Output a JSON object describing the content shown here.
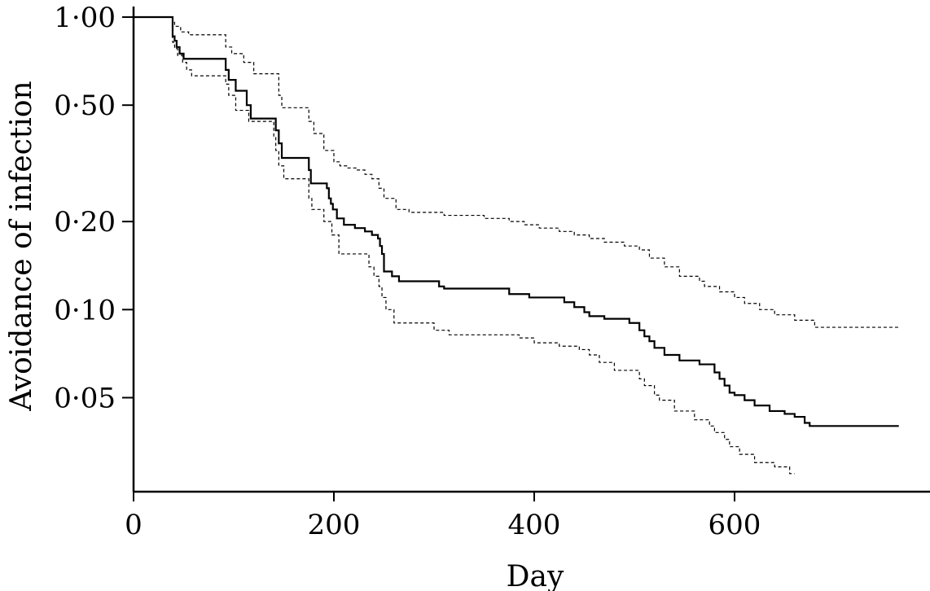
{
  "chart_data": {
    "type": "line",
    "title": "",
    "xlabel": "Day",
    "ylabel": "Avoidance of infection",
    "y_scale": "log",
    "xlim": [
      0,
      800
    ],
    "ylim": [
      0.0262,
      1.0
    ],
    "x_ticks": [
      0,
      200,
      400,
      600
    ],
    "x_tick_labels": [
      "0",
      "200",
      "400",
      "600"
    ],
    "y_ticks": [
      1.0,
      0.5,
      0.2,
      0.1,
      0.05
    ],
    "y_tick_labels": [
      "1·00",
      "0·50",
      "0·20",
      "0·10",
      "0·05"
    ],
    "grid": false,
    "series": [
      {
        "style": "solid",
        "x": [
          0,
          39,
          41,
          43,
          46,
          50,
          56,
          92,
          95,
          102,
          110,
          113,
          117,
          140,
          142,
          145,
          148,
          172,
          175,
          177,
          193,
          195,
          197,
          199,
          203,
          210,
          221,
          231,
          238,
          244,
          246,
          248,
          250,
          258,
          265,
          305,
          310,
          375,
          395,
          430,
          440,
          450,
          455,
          470,
          495,
          505,
          510,
          515,
          520,
          530,
          545,
          565,
          580,
          585,
          590,
          595,
          600,
          610,
          620,
          635,
          650,
          660,
          670,
          675,
          764
        ],
        "y": [
          1.0,
          0.86,
          0.83,
          0.79,
          0.75,
          0.72,
          0.72,
          0.66,
          0.61,
          0.56,
          0.56,
          0.5,
          0.45,
          0.45,
          0.41,
          0.37,
          0.33,
          0.33,
          0.3,
          0.27,
          0.26,
          0.24,
          0.23,
          0.22,
          0.205,
          0.195,
          0.19,
          0.185,
          0.18,
          0.175,
          0.165,
          0.155,
          0.135,
          0.13,
          0.125,
          0.12,
          0.118,
          0.113,
          0.11,
          0.106,
          0.102,
          0.098,
          0.095,
          0.093,
          0.09,
          0.085,
          0.081,
          0.078,
          0.074,
          0.07,
          0.067,
          0.065,
          0.061,
          0.058,
          0.055,
          0.052,
          0.051,
          0.049,
          0.047,
          0.045,
          0.044,
          0.043,
          0.041,
          0.04,
          0.04
        ]
      },
      {
        "style": "dashed",
        "x": [
          0,
          39,
          41,
          47,
          55,
          92,
          98,
          110,
          120,
          145,
          148,
          175,
          180,
          190,
          200,
          206,
          214,
          222,
          231,
          238,
          245,
          250,
          262,
          275,
          310,
          350,
          375,
          390,
          405,
          425,
          440,
          455,
          470,
          490,
          505,
          515,
          530,
          545,
          565,
          570,
          585,
          600,
          610,
          625,
          640,
          660,
          680,
          764
        ],
        "y": [
          1.0,
          0.96,
          0.93,
          0.89,
          0.87,
          0.79,
          0.75,
          0.7,
          0.64,
          0.54,
          0.49,
          0.44,
          0.4,
          0.35,
          0.32,
          0.31,
          0.305,
          0.3,
          0.29,
          0.28,
          0.26,
          0.24,
          0.22,
          0.215,
          0.21,
          0.205,
          0.2,
          0.195,
          0.19,
          0.185,
          0.18,
          0.175,
          0.17,
          0.165,
          0.16,
          0.15,
          0.14,
          0.13,
          0.125,
          0.12,
          0.115,
          0.11,
          0.105,
          0.1,
          0.096,
          0.092,
          0.087,
          0.087
        ]
      },
      {
        "style": "dashed",
        "x": [
          0,
          39,
          41,
          44,
          49,
          53,
          58,
          92,
          95,
          102,
          115,
          140,
          142,
          145,
          150,
          175,
          178,
          190,
          198,
          205,
          235,
          240,
          245,
          248,
          252,
          260,
          300,
          315,
          385,
          400,
          425,
          445,
          455,
          465,
          480,
          505,
          510,
          520,
          525,
          540,
          560,
          575,
          580,
          590,
          595,
          605,
          620,
          640,
          655,
          660
        ],
        "y": [
          1.0,
          0.82,
          0.78,
          0.74,
          0.7,
          0.66,
          0.63,
          0.59,
          0.54,
          0.48,
          0.44,
          0.39,
          0.35,
          0.31,
          0.28,
          0.24,
          0.22,
          0.2,
          0.18,
          0.155,
          0.14,
          0.13,
          0.12,
          0.11,
          0.1,
          0.09,
          0.085,
          0.082,
          0.08,
          0.077,
          0.075,
          0.073,
          0.07,
          0.066,
          0.062,
          0.058,
          0.055,
          0.051,
          0.049,
          0.045,
          0.042,
          0.04,
          0.038,
          0.036,
          0.034,
          0.032,
          0.03,
          0.029,
          0.0275,
          0.0275
        ]
      }
    ]
  }
}
